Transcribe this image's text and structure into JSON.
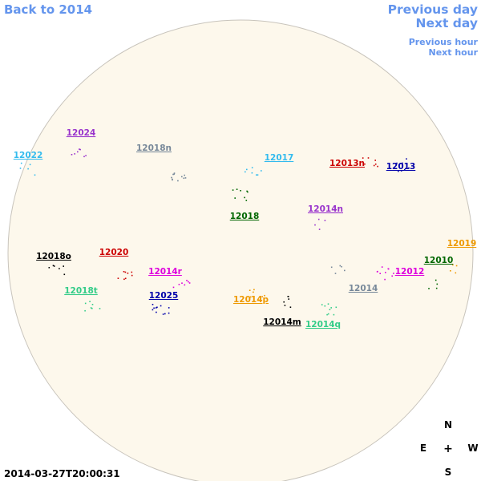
{
  "navigation": {
    "back": "Back to 2014",
    "previous_day": "Previous day",
    "next_day": "Next day",
    "previous_hour": "Previous hour",
    "next_hour": "Next hour"
  },
  "timestamp": "2014-03-27T20:00:31",
  "compass": {
    "north": "N",
    "east": "E",
    "center": "+",
    "west": "W",
    "south": "S"
  },
  "regions": [
    {
      "label": "12024",
      "color": "#9933cc"
    },
    {
      "label": "12022",
      "color": "#33bbee"
    },
    {
      "label": "12018n",
      "color": "#778899"
    },
    {
      "label": "12017",
      "color": "#33bbee"
    },
    {
      "label": "12013n",
      "color": "#cc0000"
    },
    {
      "label": "12013",
      "color": "#0000aa"
    },
    {
      "label": "12018",
      "color": "#006600"
    },
    {
      "label": "12014n",
      "color": "#9933cc"
    },
    {
      "label": "12019",
      "color": "#ee9900"
    },
    {
      "label": "12010",
      "color": "#006600"
    },
    {
      "label": "12018o",
      "color": "#000000"
    },
    {
      "label": "12020",
      "color": "#cc0000"
    },
    {
      "label": "12014r",
      "color": "#dd00dd"
    },
    {
      "label": "12012",
      "color": "#dd00dd"
    },
    {
      "label": "12014",
      "color": "#778899"
    },
    {
      "label": "12018t",
      "color": "#33cc88"
    },
    {
      "label": "12025",
      "color": "#0000aa"
    },
    {
      "label": "12014p",
      "color": "#ee9900"
    },
    {
      "label": "12014m",
      "color": "#000000"
    },
    {
      "label": "12014q",
      "color": "#33cc88"
    }
  ]
}
